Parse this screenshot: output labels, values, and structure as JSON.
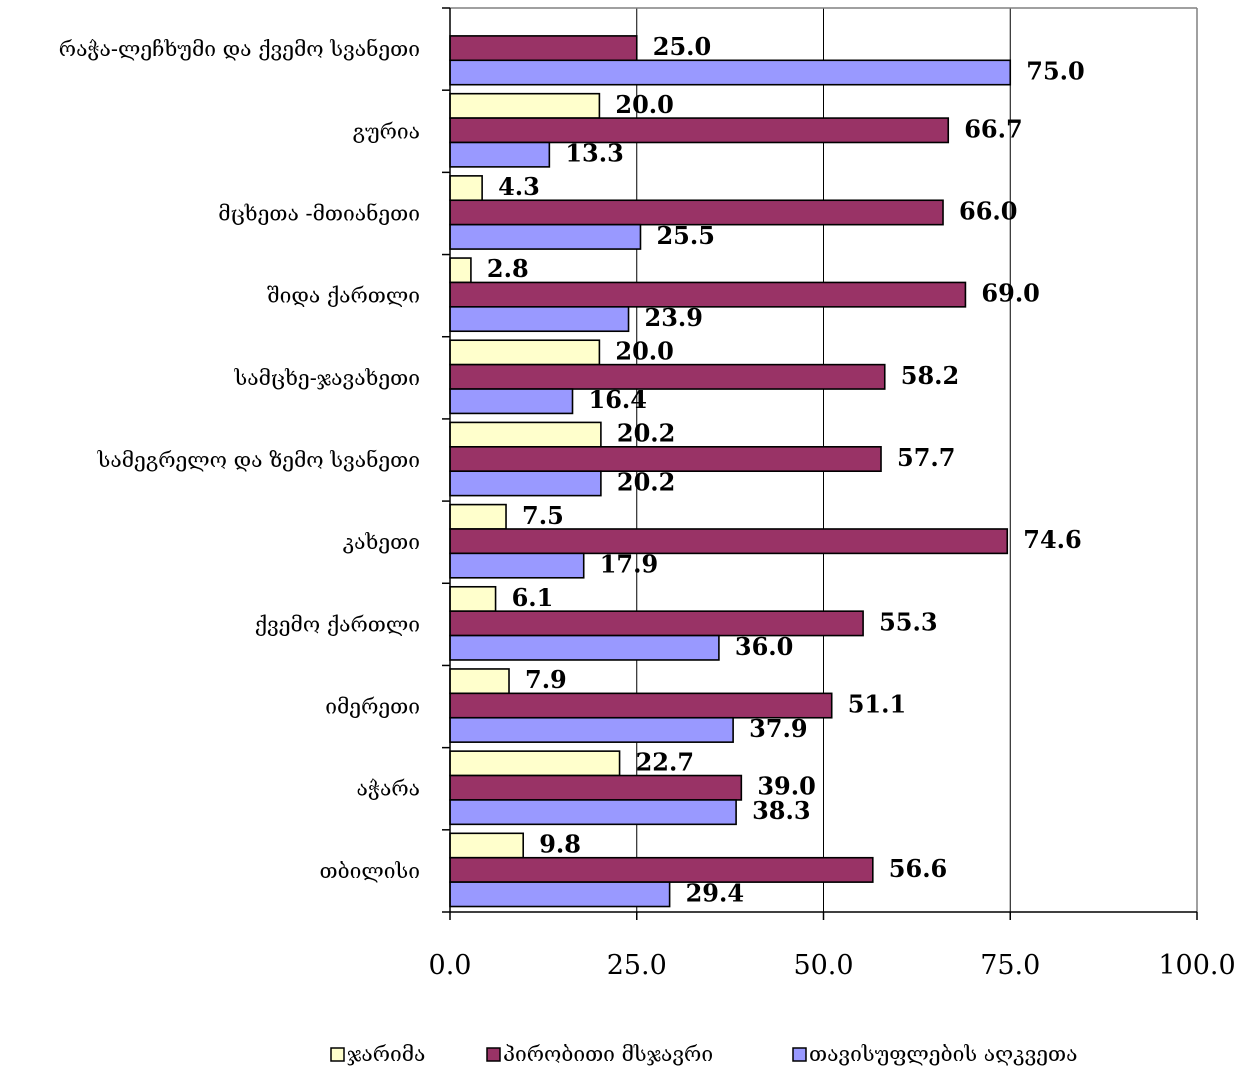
{
  "chart_data": {
    "type": "bar",
    "orientation": "horizontal",
    "categories": [
      "რაჭა-ლეჩხუმი და ქვემო სვანეთი",
      "გურია",
      "მცხეთა -მთიანეთი",
      "შიდა ქართლი",
      "სამცხე-ჯავახეთი",
      "სამეგრელო და ზემო სვანეთი",
      "კახეთი",
      "ქვემო ქართლი",
      "იმერეთი",
      "აჭარა",
      "თბილისი"
    ],
    "series": [
      {
        "name": "ჯარიმა",
        "color": "#FFFFCC",
        "values": [
          null,
          20.0,
          4.3,
          2.8,
          20.0,
          20.2,
          7.5,
          6.1,
          7.9,
          22.7,
          9.8
        ],
        "labels": [
          "",
          "20.0",
          "4.3",
          "2.8",
          "20.0",
          "20.2",
          "7.5",
          "6.1",
          "7.9",
          "22.7",
          "9.8"
        ]
      },
      {
        "name": "პირობითი მსჯავრი",
        "color": "#993366",
        "values": [
          25.0,
          66.7,
          66.0,
          69.0,
          58.2,
          57.7,
          74.6,
          55.3,
          51.1,
          39.0,
          56.6
        ],
        "labels": [
          "25.0",
          "66.7",
          "66.0",
          "69.0",
          "58.2",
          "57.7",
          "74.6",
          "55.3",
          "51.1",
          "39.0",
          "56.6"
        ]
      },
      {
        "name": "თავისუფლების აღკვეთა",
        "color": "#9999FF",
        "values": [
          75.0,
          13.3,
          25.5,
          23.9,
          16.4,
          20.2,
          17.9,
          36.0,
          37.9,
          38.3,
          29.4
        ],
        "labels": [
          "75.0",
          "13.3",
          "25.5",
          "23.9",
          "16.4",
          "20.2",
          "17.9",
          "36.0",
          "37.9",
          "38.3",
          "29.4"
        ]
      }
    ],
    "xlim": [
      0,
      100
    ],
    "xticks": [
      0,
      25,
      50,
      75,
      100
    ],
    "xtick_labels": [
      "0.0",
      "25.0",
      "50.0",
      "75.0",
      "100.0"
    ],
    "grid": true,
    "legend_position": "bottom",
    "title": "",
    "xlabel": "",
    "ylabel": ""
  }
}
